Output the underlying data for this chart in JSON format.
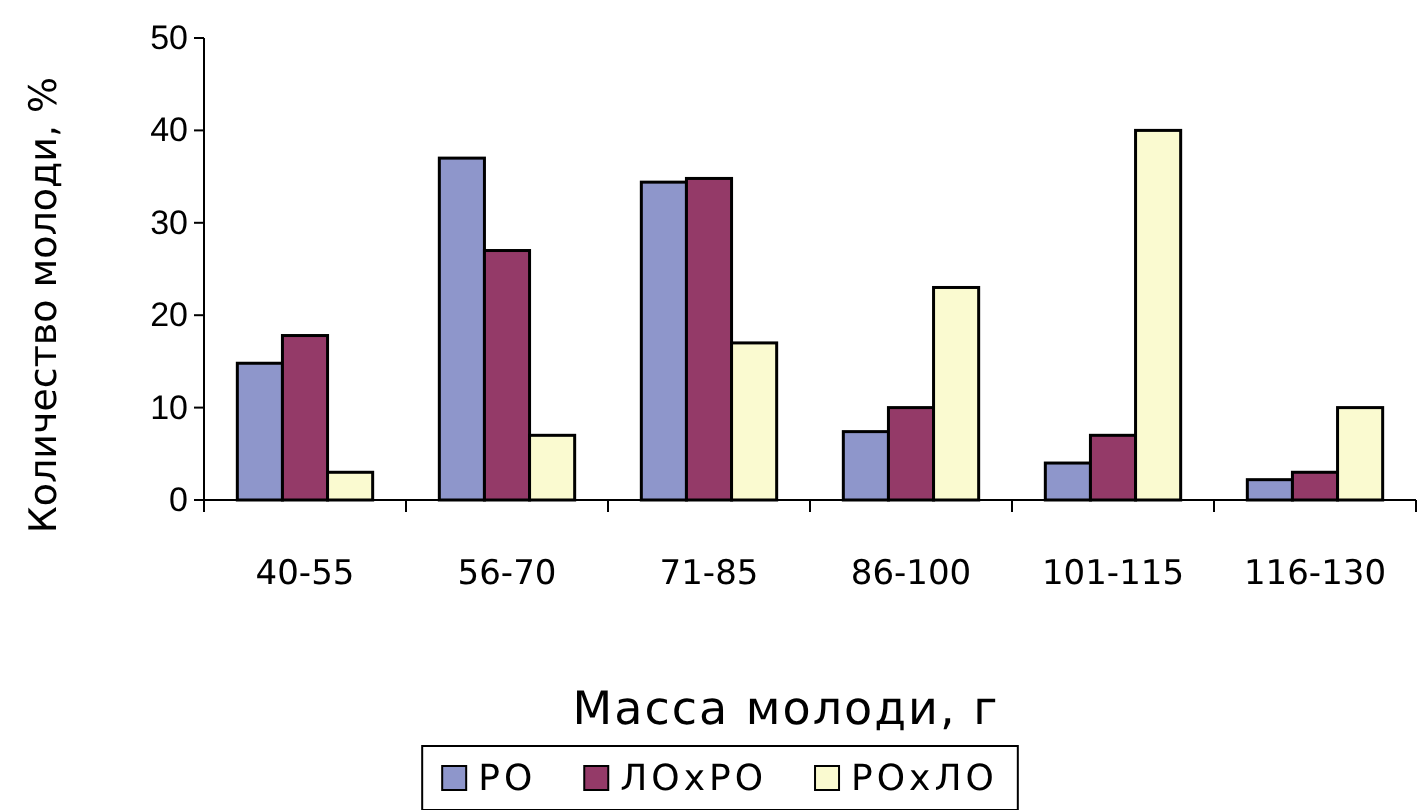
{
  "chart_data": {
    "type": "bar",
    "xlabel": "Масса молоди, г",
    "ylabel": "Количество молоди, %",
    "categories": [
      "40-55",
      "56-70",
      "71-85",
      "86-100",
      "101-115",
      "116-130"
    ],
    "series": [
      {
        "name": "РО",
        "color": "#8e96cb",
        "values": [
          14.8,
          37,
          34.4,
          7.4,
          4,
          2.2
        ]
      },
      {
        "name": "ЛОxРО",
        "color": "#943a68",
        "values": [
          17.8,
          27,
          34.8,
          10,
          7,
          3
        ]
      },
      {
        "name": "РОxЛО",
        "color": "#fafad0",
        "values": [
          3,
          7,
          17,
          23,
          40,
          10
        ]
      }
    ],
    "ylim": [
      0,
      50
    ],
    "yticks": [
      0,
      10,
      20,
      30,
      40,
      50
    ],
    "grid": false,
    "legend": "bottom"
  }
}
